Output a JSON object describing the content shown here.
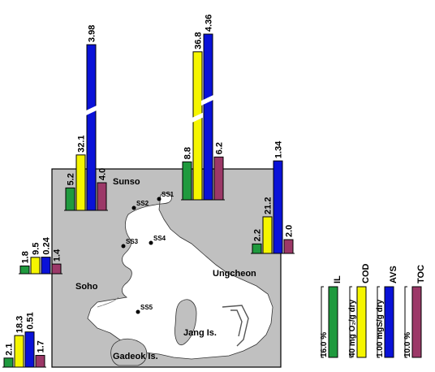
{
  "chart_data": {
    "type": "bar",
    "categories": [
      "IL",
      "COD",
      "AVS",
      "TOC"
    ],
    "colors": {
      "IL": "#1f9a3e",
      "COD": "#f5f500",
      "AVS": "#0a12d8",
      "TOC": "#9c3868",
      "land": "#c0c0c0",
      "sea": "#ffffff"
    },
    "scale_legend": {
      "title": [
        "IL",
        "COD",
        "AVS",
        "TOC"
      ],
      "full_scale_labels": [
        "16.0 %",
        "40 mg O₂/g dry",
        "1.00 mgS/g dry",
        "10.0 %"
      ]
    },
    "series": [
      {
        "name": "SS1",
        "values": [
          8.8,
          36.8,
          4.36,
          6.2
        ],
        "labels": [
          "8.8",
          "36.8",
          "4.36",
          "6.2"
        ],
        "broken": [
          false,
          true,
          true,
          false
        ]
      },
      {
        "name": "SS2",
        "values": [
          5.2,
          32.1,
          3.98,
          4.0
        ],
        "labels": [
          "5.2",
          "32.1",
          "3.98",
          "4.0"
        ],
        "broken": [
          false,
          false,
          true,
          false
        ]
      },
      {
        "name": "SS3",
        "values": [
          1.8,
          9.5,
          0.24,
          1.4
        ],
        "labels": [
          "1.8",
          "9.5",
          "0.24",
          "1.4"
        ],
        "broken": [
          false,
          false,
          false,
          false
        ]
      },
      {
        "name": "SS4",
        "values": [
          2.2,
          21.2,
          1.34,
          2.0
        ],
        "labels": [
          "2.2",
          "21.2",
          "1.34",
          "2.0"
        ],
        "broken": [
          false,
          false,
          false,
          false
        ]
      },
      {
        "name": "SS5",
        "values": [
          2.1,
          18.3,
          0.51,
          1.7
        ],
        "labels": [
          "2.1",
          "18.3",
          "0.51",
          "1.7"
        ],
        "broken": [
          false,
          false,
          false,
          false
        ]
      }
    ]
  },
  "map": {
    "place_labels": [
      "Sunso",
      "Soho",
      "Ungcheon",
      "Jang Is.",
      "Gadeok Is."
    ],
    "stations": [
      "SS1",
      "SS2",
      "SS3",
      "SS4",
      "SS5"
    ]
  }
}
